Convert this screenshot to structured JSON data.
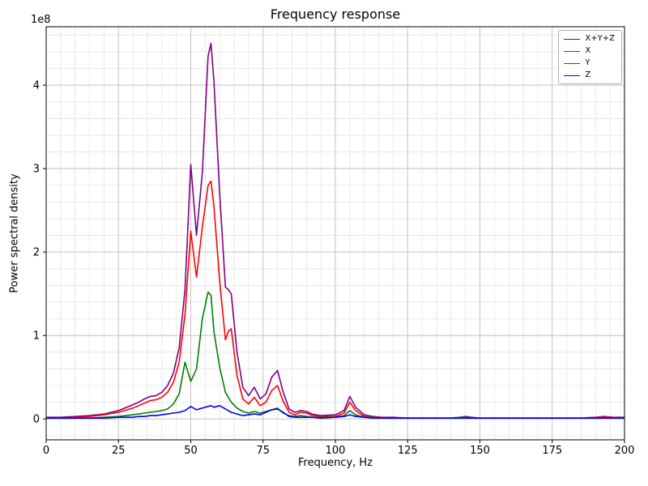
{
  "chart_data": {
    "type": "line",
    "title": "Frequency response",
    "xlabel": "Frequency, Hz",
    "ylabel": "Power spectral density",
    "y_offset_text": "1e8",
    "y_unit_note": "values are in units of 1e8",
    "xlim": [
      0,
      200
    ],
    "ylim": [
      -0.25,
      4.7
    ],
    "x_ticks": [
      0,
      25,
      50,
      75,
      100,
      125,
      150,
      175,
      200
    ],
    "y_ticks": [
      0,
      1,
      2,
      3,
      4
    ],
    "x_minor_step": 5,
    "y_minor_step": 0.2,
    "grid": true,
    "legend_position": "upper right",
    "x": [
      0,
      5,
      10,
      15,
      20,
      25,
      30,
      32,
      34,
      36,
      38,
      40,
      42,
      44,
      46,
      48,
      50,
      52,
      54,
      56,
      57,
      58,
      60,
      62,
      63,
      64,
      66,
      68,
      70,
      72,
      74,
      76,
      78,
      80,
      82,
      84,
      86,
      88,
      90,
      92,
      95,
      100,
      103,
      105,
      107,
      110,
      113,
      116,
      120,
      125,
      130,
      135,
      140,
      143,
      145,
      147,
      150,
      155,
      160,
      165,
      170,
      175,
      180,
      185,
      190,
      193,
      196,
      200
    ],
    "series": [
      {
        "name": "X+Y+Z",
        "color": "#800080",
        "values": [
          0.02,
          0.02,
          0.03,
          0.04,
          0.06,
          0.1,
          0.17,
          0.2,
          0.24,
          0.27,
          0.28,
          0.32,
          0.4,
          0.55,
          0.85,
          1.55,
          3.05,
          2.2,
          2.95,
          4.35,
          4.5,
          4.05,
          2.7,
          1.58,
          1.55,
          1.5,
          0.8,
          0.38,
          0.28,
          0.38,
          0.24,
          0.3,
          0.5,
          0.58,
          0.32,
          0.12,
          0.08,
          0.1,
          0.09,
          0.06,
          0.04,
          0.05,
          0.1,
          0.27,
          0.14,
          0.05,
          0.03,
          0.02,
          0.02,
          0.01,
          0.01,
          0.01,
          0.01,
          0.02,
          0.03,
          0.02,
          0.01,
          0.01,
          0.01,
          0.01,
          0.01,
          0.01,
          0.01,
          0.01,
          0.02,
          0.03,
          0.02,
          0.02
        ]
      },
      {
        "name": "X",
        "color": "#ff0000",
        "values": [
          0.01,
          0.01,
          0.02,
          0.03,
          0.05,
          0.08,
          0.13,
          0.16,
          0.19,
          0.22,
          0.23,
          0.26,
          0.32,
          0.44,
          0.68,
          1.25,
          2.25,
          1.7,
          2.3,
          2.8,
          2.85,
          2.55,
          1.65,
          0.95,
          1.05,
          1.08,
          0.52,
          0.24,
          0.18,
          0.26,
          0.16,
          0.2,
          0.34,
          0.4,
          0.21,
          0.08,
          0.05,
          0.08,
          0.07,
          0.04,
          0.03,
          0.03,
          0.07,
          0.2,
          0.1,
          0.03,
          0.02,
          0.02,
          0.01,
          0.01,
          0.01,
          0.01,
          0.01,
          0.01,
          0.01,
          0.01,
          0.01,
          0.01,
          0.01,
          0.01,
          0.01,
          0.01,
          0.01,
          0.01,
          0.02,
          0.02,
          0.02,
          0.01
        ]
      },
      {
        "name": "Y",
        "color": "#008000",
        "values": [
          0.01,
          0.01,
          0.01,
          0.01,
          0.02,
          0.03,
          0.05,
          0.06,
          0.07,
          0.08,
          0.09,
          0.1,
          0.12,
          0.18,
          0.3,
          0.68,
          0.45,
          0.6,
          1.2,
          1.52,
          1.48,
          1.05,
          0.62,
          0.32,
          0.26,
          0.2,
          0.13,
          0.09,
          0.07,
          0.09,
          0.07,
          0.09,
          0.11,
          0.13,
          0.07,
          0.04,
          0.03,
          0.04,
          0.03,
          0.02,
          0.02,
          0.02,
          0.04,
          0.1,
          0.05,
          0.02,
          0.02,
          0.01,
          0.01,
          0.01,
          0.01,
          0.01,
          0.01,
          0.02,
          0.02,
          0.01,
          0.01,
          0.01,
          0.01,
          0.01,
          0.01,
          0.01,
          0.01,
          0.01,
          0.01,
          0.01,
          0.01,
          0.01
        ]
      },
      {
        "name": "Z",
        "color": "#0000ff",
        "values": [
          0.01,
          0.01,
          0.01,
          0.01,
          0.01,
          0.02,
          0.02,
          0.03,
          0.03,
          0.04,
          0.04,
          0.05,
          0.06,
          0.07,
          0.08,
          0.1,
          0.15,
          0.11,
          0.13,
          0.15,
          0.16,
          0.14,
          0.16,
          0.12,
          0.1,
          0.08,
          0.06,
          0.04,
          0.05,
          0.06,
          0.05,
          0.08,
          0.11,
          0.12,
          0.08,
          0.03,
          0.02,
          0.02,
          0.02,
          0.02,
          0.01,
          0.02,
          0.03,
          0.05,
          0.03,
          0.02,
          0.01,
          0.01,
          0.01,
          0.01,
          0.01,
          0.01,
          0.01,
          0.01,
          0.01,
          0.01,
          0.01,
          0.01,
          0.01,
          0.01,
          0.01,
          0.01,
          0.01,
          0.01,
          0.01,
          0.01,
          0.01,
          0.01
        ]
      }
    ],
    "style": {
      "major_grid_color": "#c3c3c3",
      "minor_grid_color": "#e4e4e4",
      "spine_color": "#000000",
      "background": "#ffffff"
    }
  }
}
